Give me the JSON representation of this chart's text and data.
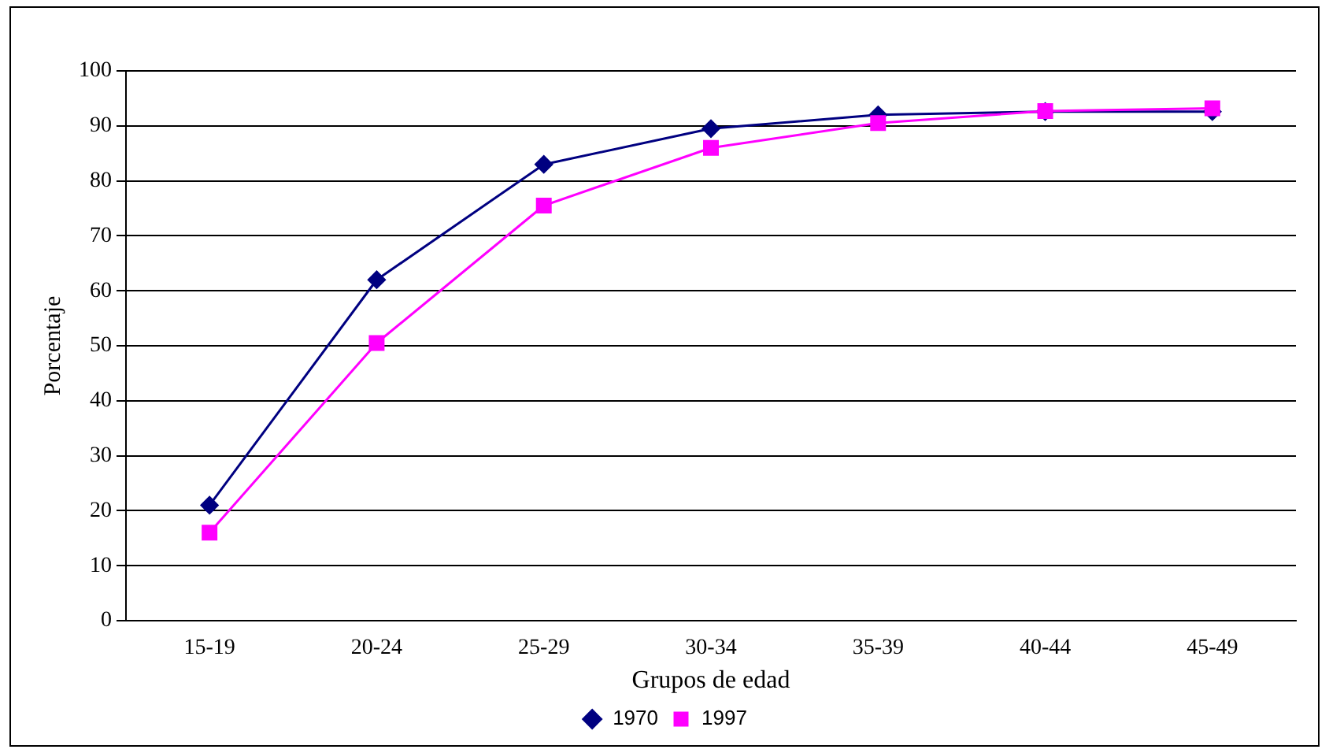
{
  "chart_data": {
    "type": "line",
    "xlabel": "Grupos de edad",
    "ylabel": "Porcentaje",
    "categories": [
      "15-19",
      "20-24",
      "25-29",
      "30-34",
      "35-39",
      "40-44",
      "45-49"
    ],
    "series": [
      {
        "name": "1970",
        "color": "#000080",
        "marker": "diamond",
        "values": [
          21,
          62,
          83,
          89.5,
          92,
          92.6,
          92.6
        ]
      },
      {
        "name": "1997",
        "color": "#ff00ff",
        "marker": "square",
        "values": [
          16,
          50.5,
          75.5,
          86,
          90.5,
          92.7,
          93.2
        ]
      }
    ],
    "ylim": [
      0,
      100
    ],
    "yticks": [
      0,
      10,
      20,
      30,
      40,
      50,
      60,
      70,
      80,
      90,
      100
    ],
    "grid": "y",
    "legend": "bottom",
    "line_style": "solid"
  }
}
